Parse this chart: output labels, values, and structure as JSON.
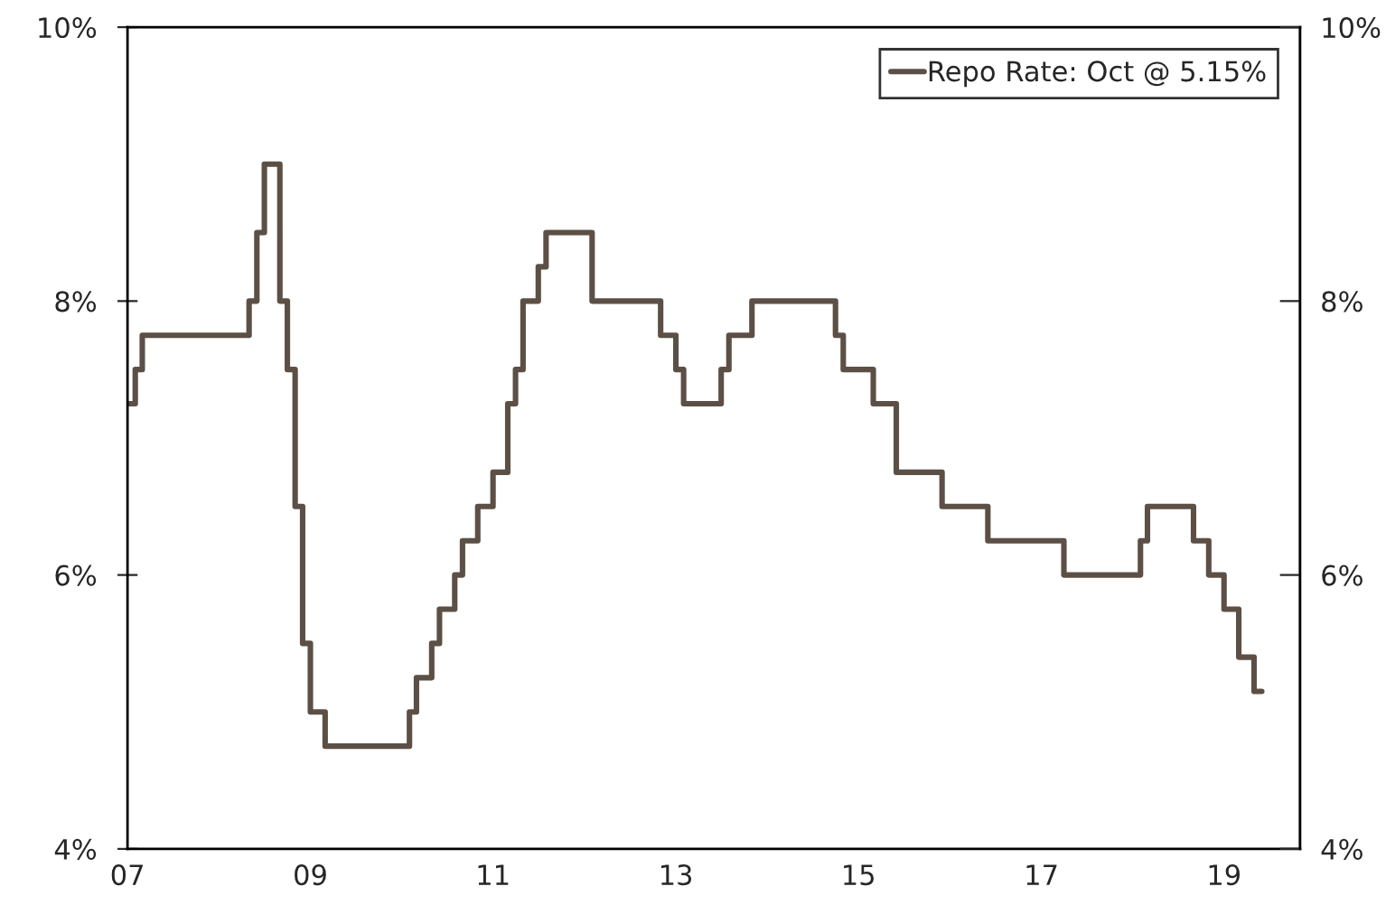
{
  "chart_data": {
    "type": "step",
    "x": [
      "2007-01",
      "2007-02",
      "2007-03",
      "2008-05",
      "2008-06",
      "2008-07",
      "2008-09",
      "2008-10",
      "2008-11",
      "2008-12",
      "2009-01",
      "2009-03",
      "2010-02",
      "2010-03",
      "2010-05",
      "2010-06",
      "2010-08",
      "2010-09",
      "2010-11",
      "2011-01",
      "2011-03",
      "2011-04",
      "2011-05",
      "2011-07",
      "2011-08",
      "2012-02",
      "2012-11",
      "2013-01",
      "2013-02",
      "2013-07",
      "2013-08",
      "2013-11",
      "2014-10",
      "2014-11",
      "2015-03",
      "2015-06",
      "2015-12",
      "2016-06",
      "2017-04",
      "2018-02",
      "2018-03",
      "2018-09",
      "2018-11",
      "2019-01",
      "2019-03",
      "2019-05",
      "2019-06"
    ],
    "series": [
      {
        "name": "Repo Rate: Oct @ 5.15%",
        "color": "#5c5046",
        "values": [
          7.25,
          7.25,
          7.5,
          7.75,
          8.0,
          8.5,
          9.0,
          8.0,
          7.5,
          6.5,
          5.5,
          5.0,
          4.75,
          5.0,
          5.25,
          5.5,
          5.75,
          6.0,
          6.25,
          6.5,
          6.75,
          7.25,
          7.5,
          8.0,
          8.25,
          8.5,
          8.0,
          7.75,
          7.5,
          7.25,
          7.5,
          7.75,
          8.0,
          7.75,
          7.5,
          7.25,
          6.75,
          6.5,
          6.25,
          6.0,
          6.25,
          6.5,
          6.25,
          6.0,
          5.75,
          5.4,
          5.15
        ]
      }
    ],
    "xlim": [
      "2007-01",
      "2019-11"
    ],
    "xticks": [
      {
        "value": "2007-01",
        "label": "07"
      },
      {
        "value": "2009-01",
        "label": "09"
      },
      {
        "value": "2011-01",
        "label": "11"
      },
      {
        "value": "2013-01",
        "label": "13"
      },
      {
        "value": "2015-01",
        "label": "15"
      },
      {
        "value": "2017-01",
        "label": "17"
      },
      {
        "value": "2019-01",
        "label": "19"
      }
    ],
    "ylim": [
      4,
      10
    ],
    "yticks": [
      {
        "value": 4,
        "label": "4%"
      },
      {
        "value": 6,
        "label": "6%"
      },
      {
        "value": 8,
        "label": "8%"
      },
      {
        "value": 10,
        "label": "10%"
      }
    ],
    "y2lim": [
      4,
      10
    ],
    "y2ticks": [
      {
        "value": 4,
        "label": "4%"
      },
      {
        "value": 6,
        "label": "6%"
      },
      {
        "value": 8,
        "label": "8%"
      },
      {
        "value": 10,
        "label": "10%"
      }
    ],
    "legend": "top right",
    "grid": false
  }
}
